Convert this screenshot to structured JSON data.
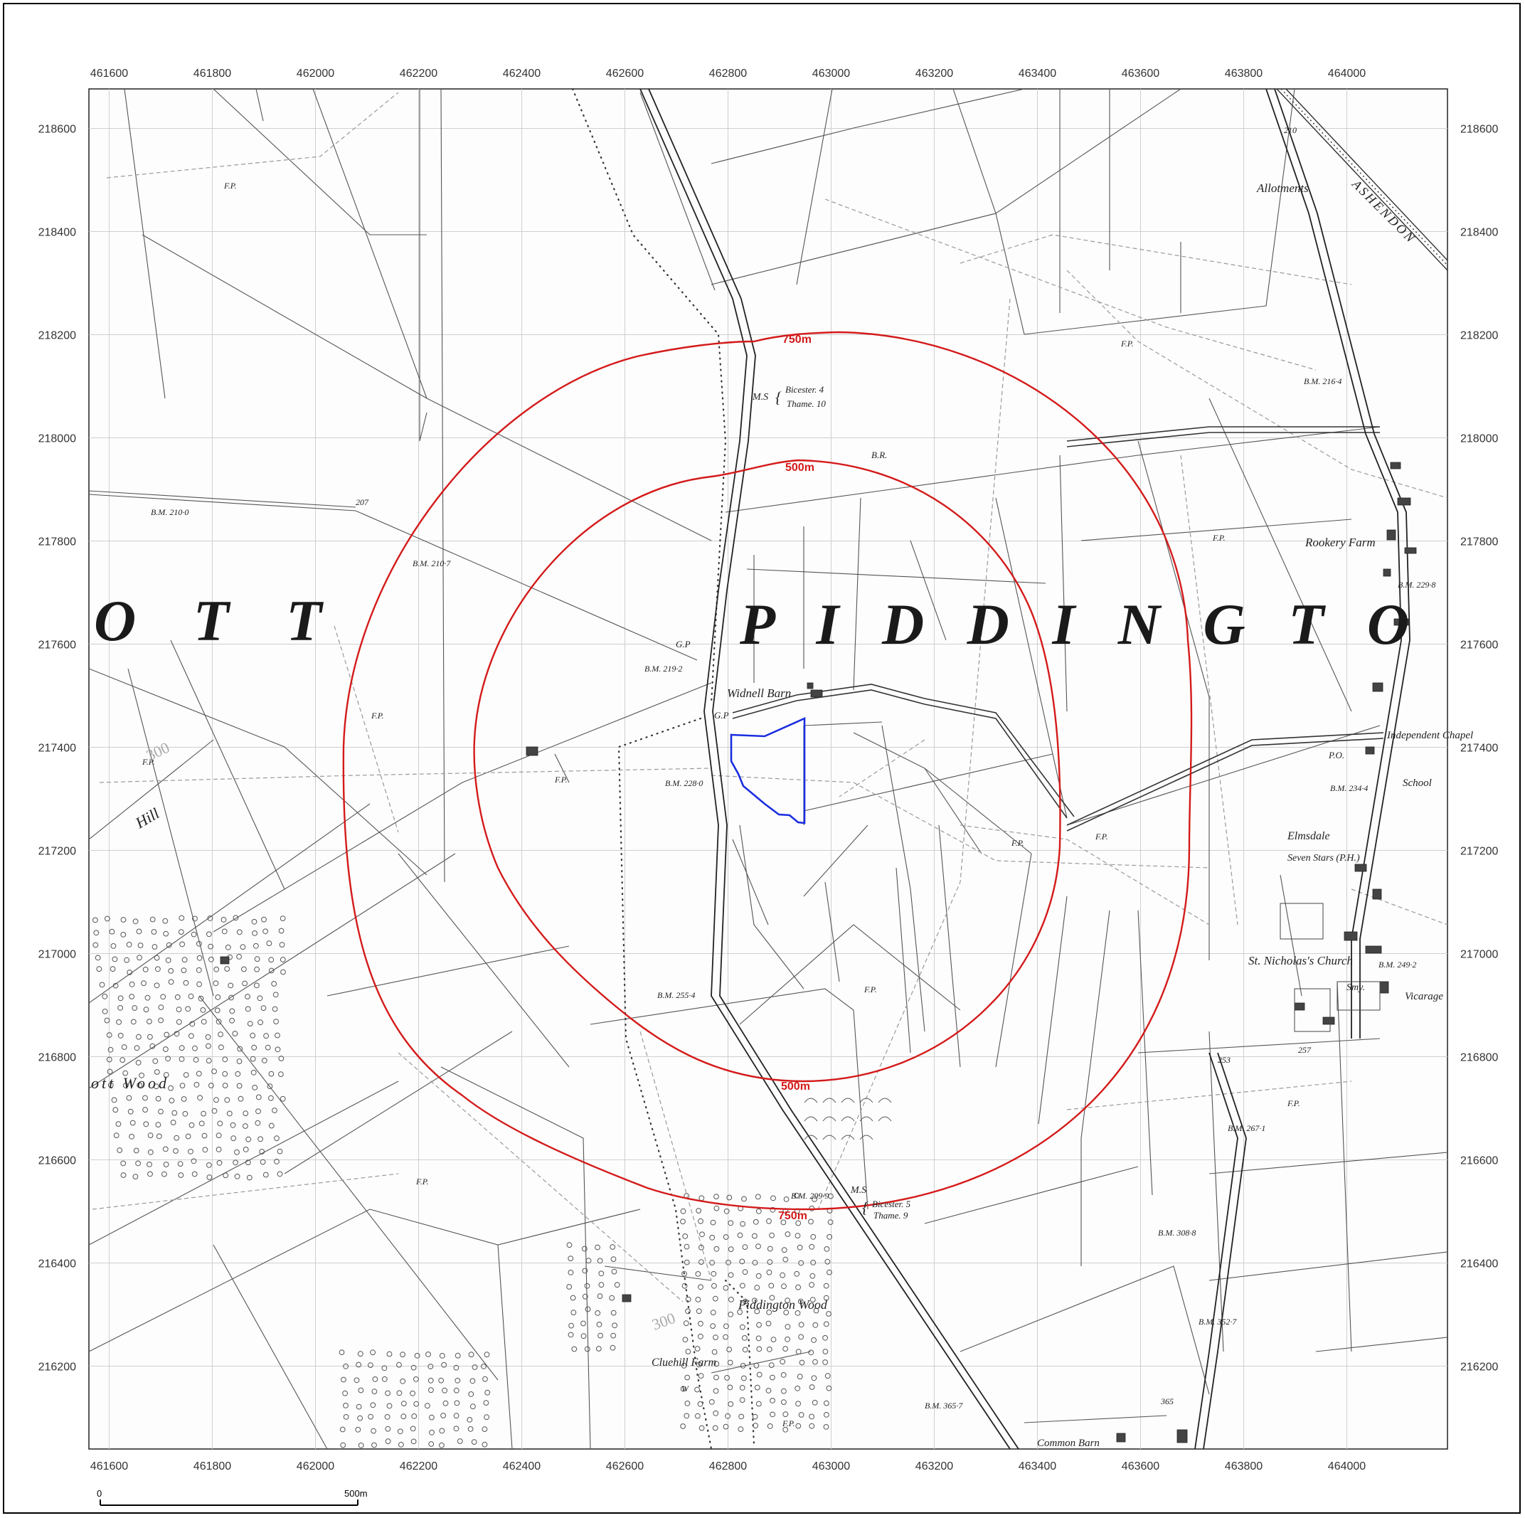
{
  "axes": {
    "x_ticks": [
      "461600",
      "461800",
      "462000",
      "462200",
      "462400",
      "462600",
      "462800",
      "463000",
      "463200",
      "463400",
      "463600",
      "463800",
      "464000"
    ],
    "y_ticks": [
      "218600",
      "218400",
      "218200",
      "218000",
      "217800",
      "217600",
      "217400",
      "217200",
      "217000",
      "216800",
      "216600",
      "216400",
      "216200"
    ]
  },
  "buffers": [
    {
      "label": "750m",
      "radius_m": 750,
      "color": "#d41a1a"
    },
    {
      "label": "500m",
      "radius_m": 500,
      "color": "#d41a1a"
    }
  ],
  "site_boundary_color": "#1a2ee0",
  "parish_names": [
    "O T T",
    "P I D D I N G T O"
  ],
  "place_labels": [
    "Allotments",
    "Rookery Farm",
    "Independent Chapel",
    "School",
    "Elmsdale",
    "Seven Stars (P.H.)",
    "St. Nicholas's Church",
    "Vicarage",
    "Widnell Barn",
    "Piddington Wood",
    "Cluehill Farm",
    "Common Barn",
    "ott Wood",
    "Hill",
    "ASHENDON"
  ],
  "annotations": {
    "bm_210_0": "B.M. 210·0",
    "bm_210_7": "B.M. 210·7",
    "bm_219_2": "B.M. 219·2",
    "bm_228_0": "B.M. 228·0",
    "bm_255_4": "B.M. 255·4",
    "bm_299_9": "B.M. 299·9",
    "bm_216_4": "B.M. 216·4",
    "bm_229_8": "B.M. 229·8",
    "bm_234_4": "B.M. 234·4",
    "bm_249_2": "B.M. 249·2",
    "bm_267_1": "B.M. 267·1",
    "bm_308_8": "B.M. 308·8",
    "bm_352_7": "B.M. 352·7",
    "bm_365_7": "B.M. 365·7",
    "ms_north": "M.S",
    "ms_north_dest": "Bicester. 4",
    "ms_north_dest2": "Thame. 10",
    "ms_south": "M.S",
    "ms_south_dest": "Bicester. 5",
    "ms_south_dest2": "Thame. 9",
    "br": "B.R.",
    "gp1": "G.P",
    "gp2": "G.P",
    "fp": "F.P.",
    "po": "P.O.",
    "smy": "Smy.",
    "w": "W",
    "spot_207": "207",
    "spot_210": "210",
    "spot_253": "253",
    "spot_257": "257",
    "spot_300": "300",
    "spot_365": "365"
  },
  "scale_bar": {
    "start": "0",
    "end": "500m"
  }
}
